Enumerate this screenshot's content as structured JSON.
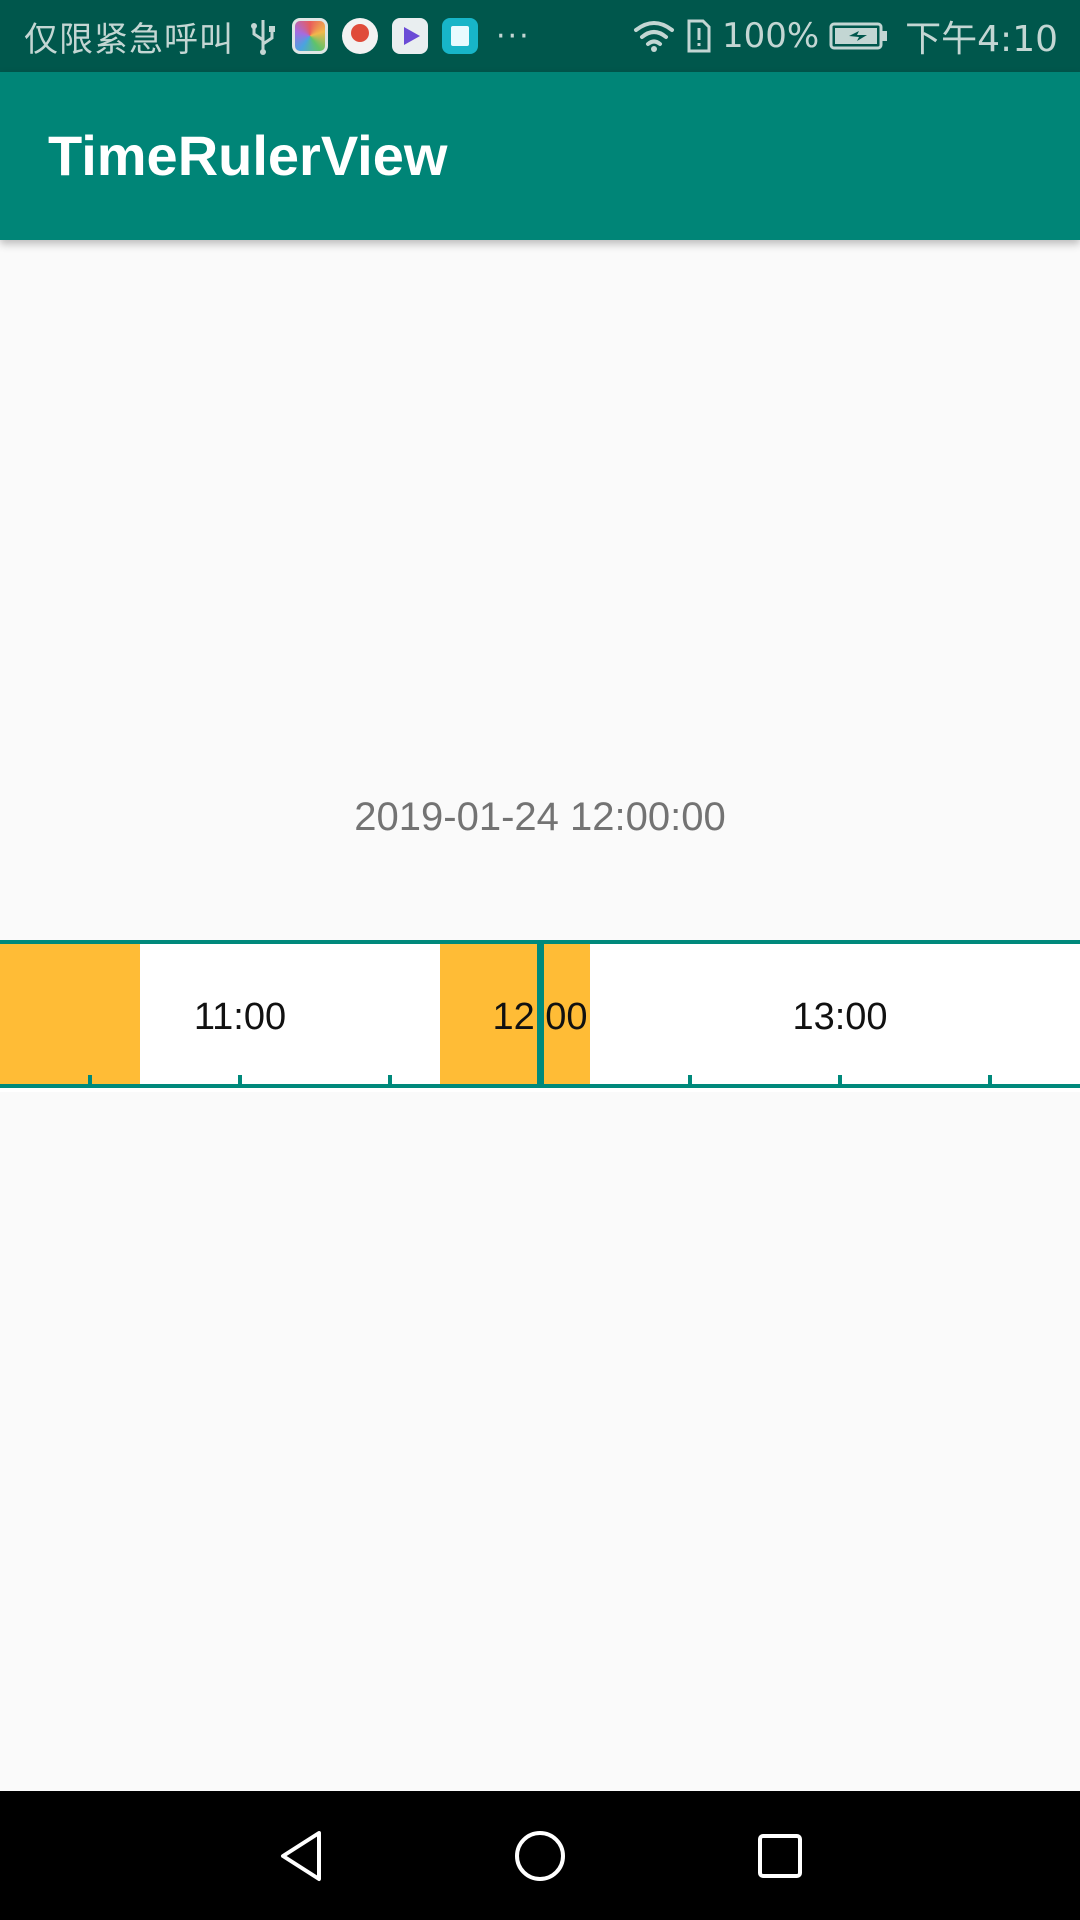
{
  "status_bar": {
    "carrier": "仅限紧急呼叫",
    "more": "···",
    "battery_percent": "100%",
    "time": "下午4:10",
    "icons": [
      "usb-icon",
      "gallery-app-icon",
      "maps-app-icon",
      "video-app-icon",
      "reader-app-icon",
      "wifi-icon",
      "sim-alert-icon",
      "battery-charging-icon"
    ]
  },
  "app_bar": {
    "title": "TimeRulerView"
  },
  "main": {
    "current_time": "2019-01-24 12:00:00"
  },
  "ruler": {
    "labels": [
      "11:00",
      "12:00",
      "13:00"
    ],
    "cursor_time": "12:00",
    "colors": {
      "line": "#00897b",
      "segment": "#ffbc36",
      "background": "#ffffff"
    }
  },
  "nav_bar": {
    "buttons": [
      "back-icon",
      "home-icon",
      "recents-icon"
    ]
  }
}
